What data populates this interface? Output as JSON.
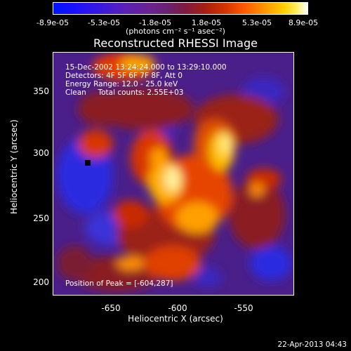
{
  "colorbar": {
    "ticks": [
      "-8.9e-05",
      "-5.3e-05",
      "-1.8e-05",
      "1.8e-05",
      "5.3e-05",
      "8.9e-05"
    ],
    "units": "(photons cm⁻² s⁻¹ asec⁻²)"
  },
  "title": "Reconstructed RHESSI Image",
  "info": {
    "line1": "15-Dec-2002 13:24:24.000 to 13:29:10.000",
    "line2": "Detectors: 4F 5F 6F 7F 8F, Att 0",
    "line3": "Energy Range: 12.0 - 25.0 keV",
    "line4": "Clean     Total counts: 2.55E+03",
    "peak": "Position of Peak = [-604,287]"
  },
  "axes": {
    "xlabel": "Heliocentric X (arcsec)",
    "ylabel": "Heliocentric Y (arcsec)",
    "xticks": [
      "-650",
      "-600",
      "-550"
    ],
    "yticks": [
      "350",
      "300",
      "250",
      "200"
    ]
  },
  "footer": "22-Apr-2013 04:43"
}
